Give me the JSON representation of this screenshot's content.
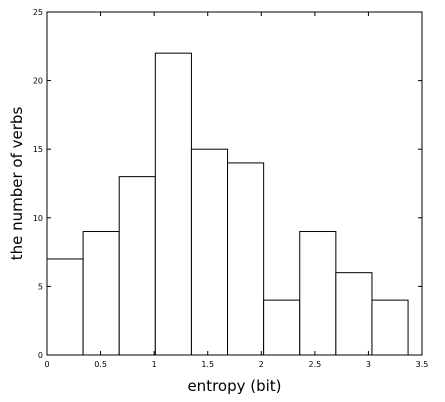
{
  "chart_data": {
    "type": "bar",
    "subtype": "histogram",
    "xlabel": "entropy (bit)",
    "ylabel": "the number of verbs",
    "xlim": [
      0,
      3.5
    ],
    "ylim": [
      0,
      25
    ],
    "x_ticks": [
      "0",
      "0.5",
      "1",
      "1.5",
      "2",
      "2.5",
      "3",
      "3.5"
    ],
    "y_ticks": [
      "0",
      "5",
      "10",
      "15",
      "20",
      "25"
    ],
    "bin_edges": [
      0,
      0.337,
      0.674,
      1.011,
      1.348,
      1.685,
      2.022,
      2.359,
      2.696,
      3.033,
      3.37
    ],
    "values": [
      7,
      9,
      13,
      22,
      15,
      14,
      4,
      9,
      6,
      4
    ],
    "grid": false,
    "legend": "none",
    "bar_fill": "#ffffff",
    "bar_edge": "#000000"
  }
}
